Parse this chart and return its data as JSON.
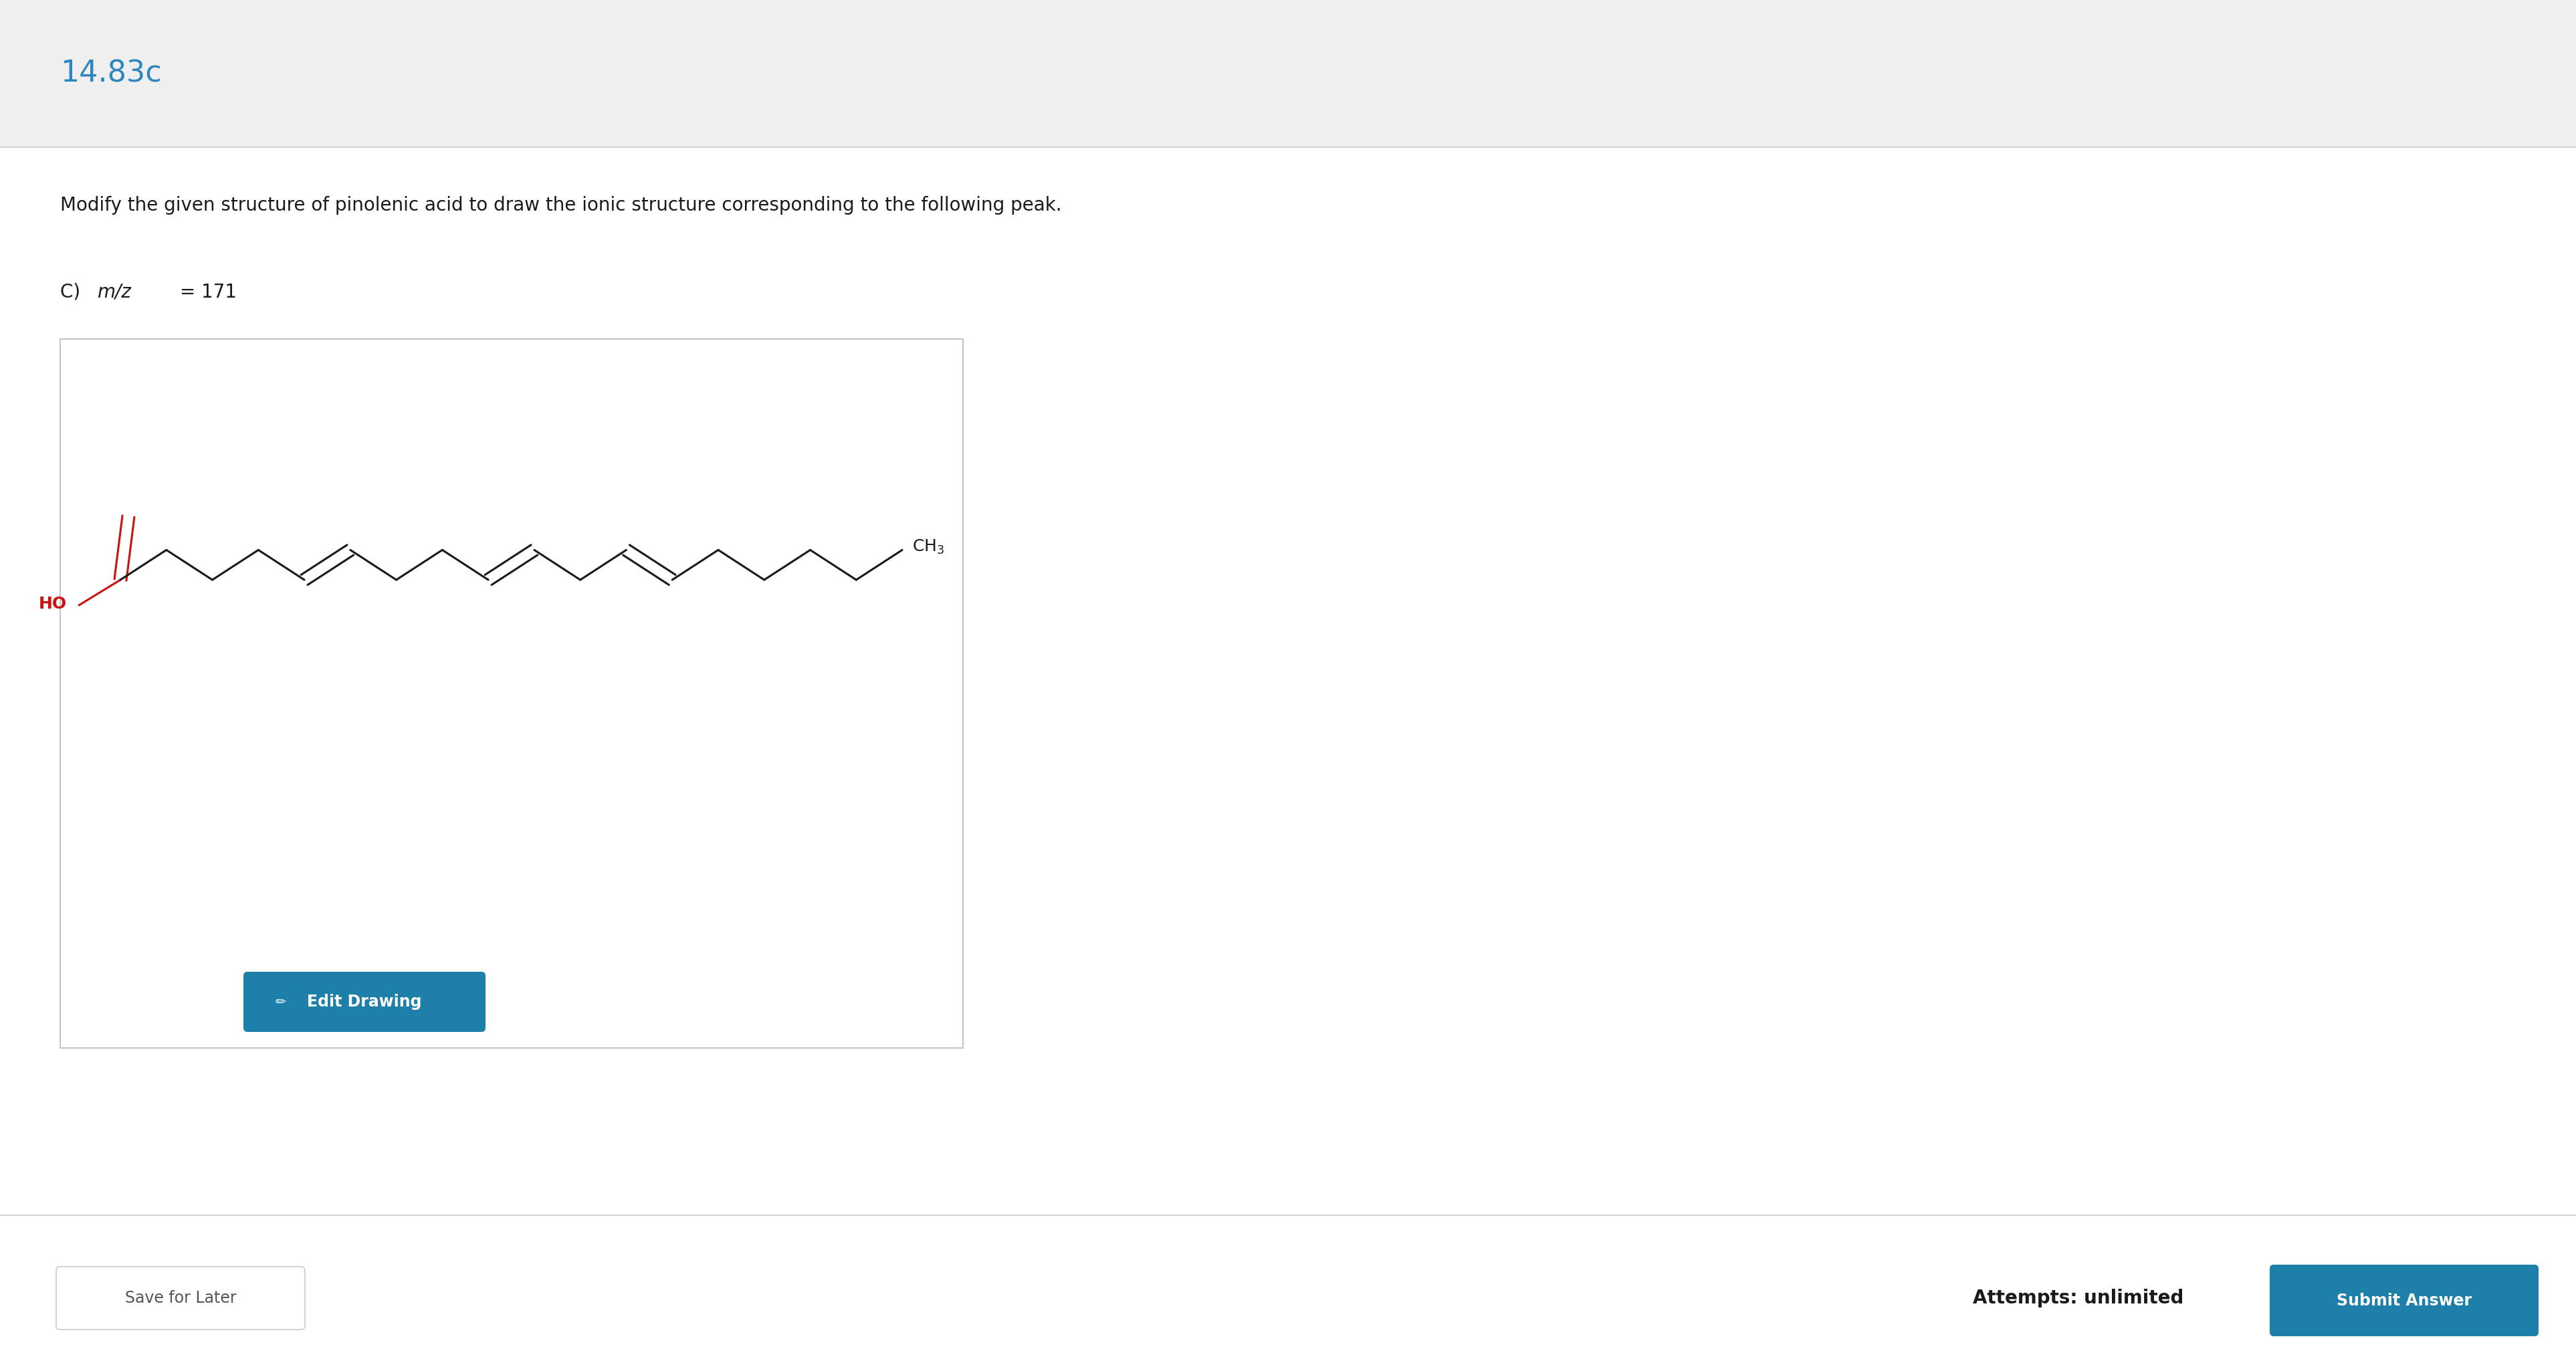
{
  "title": "14.83c",
  "title_color": "#2e86c1",
  "header_bg": "#efefef",
  "body_bg": "#ffffff",
  "question_text": "Modify the given structure of pinolenic acid to draw the ionic structure corresponding to the following peak.",
  "sub_label_c": "C) ",
  "sub_label_mz": "m/z",
  "sub_label_val": " = 171",
  "box_border_color": "#b8b8b8",
  "button_color": "#1e7fa8",
  "button_text": "Edit Drawing",
  "button_text_color": "#ffffff",
  "save_button_text": "Save for Later",
  "attempts_text": "Attempts: unlimited",
  "submit_text": "Submit Answer",
  "submit_bg": "#1e7fa8",
  "submit_text_color": "#ffffff",
  "molecule_bond_color": "#1a1a1a",
  "molecule_red_color": "#cc1111",
  "molecule_label_ho": "HO",
  "molecule_label_ch3": "CH₃"
}
